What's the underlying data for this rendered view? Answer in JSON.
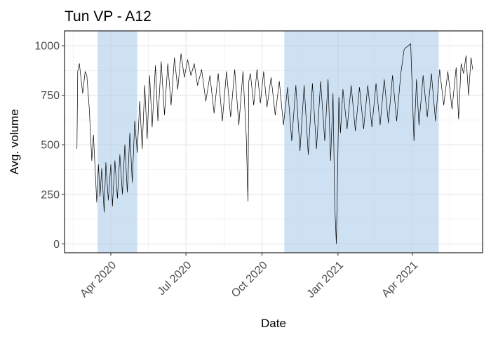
{
  "chart_data": {
    "type": "line",
    "title": "Tun VP - A12",
    "xlabel": "Date",
    "ylabel": "Avg. volume",
    "x_domain": [
      "2020-02-05",
      "2021-06-25"
    ],
    "ylim": [
      -45,
      1075
    ],
    "y_ticks": [
      0,
      250,
      500,
      750,
      1000
    ],
    "x_ticks": [
      {
        "date": "2020-04-01",
        "label": "Apr 2020"
      },
      {
        "date": "2020-07-01",
        "label": "Jul 2020"
      },
      {
        "date": "2020-10-01",
        "label": "Oct 2020"
      },
      {
        "date": "2021-01-01",
        "label": "Jan 2021"
      },
      {
        "date": "2021-04-01",
        "label": "Apr 2021"
      }
    ],
    "grid": true,
    "shaded_periods": [
      {
        "start": "2020-03-16",
        "end": "2020-05-03"
      },
      {
        "start": "2020-10-28",
        "end": "2021-05-03"
      }
    ],
    "series": [
      {
        "color": "#000000",
        "x": [
          "2020-02-20",
          "2020-02-21",
          "2020-02-23",
          "2020-02-25",
          "2020-02-27",
          "2020-03-01",
          "2020-03-03",
          "2020-03-06",
          "2020-03-09",
          "2020-03-11",
          "2020-03-13",
          "2020-03-15",
          "2020-03-17",
          "2020-03-19",
          "2020-03-21",
          "2020-03-24",
          "2020-03-26",
          "2020-03-29",
          "2020-04-01",
          "2020-04-03",
          "2020-04-06",
          "2020-04-09",
          "2020-04-12",
          "2020-04-15",
          "2020-04-18",
          "2020-04-21",
          "2020-04-24",
          "2020-04-27",
          "2020-04-30",
          "2020-05-03",
          "2020-05-06",
          "2020-05-09",
          "2020-05-12",
          "2020-05-15",
          "2020-05-18",
          "2020-05-21",
          "2020-05-25",
          "2020-05-28",
          "2020-06-01",
          "2020-06-05",
          "2020-06-09",
          "2020-06-13",
          "2020-06-17",
          "2020-06-21",
          "2020-06-25",
          "2020-06-29",
          "2020-07-03",
          "2020-07-07",
          "2020-07-11",
          "2020-07-15",
          "2020-07-20",
          "2020-07-25",
          "2020-07-30",
          "2020-08-04",
          "2020-08-09",
          "2020-08-14",
          "2020-08-19",
          "2020-08-24",
          "2020-08-29",
          "2020-09-03",
          "2020-09-08",
          "2020-09-12",
          "2020-09-14",
          "2020-09-15",
          "2020-09-17",
          "2020-09-21",
          "2020-09-25",
          "2020-09-29",
          "2020-10-03",
          "2020-10-07",
          "2020-10-12",
          "2020-10-17",
          "2020-10-22",
          "2020-10-27",
          "2020-11-01",
          "2020-11-06",
          "2020-11-11",
          "2020-11-16",
          "2020-11-21",
          "2020-11-26",
          "2020-12-01",
          "2020-12-06",
          "2020-12-11",
          "2020-12-16",
          "2020-12-20",
          "2020-12-23",
          "2020-12-26",
          "2020-12-28",
          "2020-12-30",
          "2021-01-02",
          "2021-01-04",
          "2021-01-07",
          "2021-01-12",
          "2021-01-17",
          "2021-01-22",
          "2021-01-27",
          "2021-02-01",
          "2021-02-06",
          "2021-02-11",
          "2021-02-16",
          "2021-02-21",
          "2021-02-26",
          "2021-03-03",
          "2021-03-08",
          "2021-03-13",
          "2021-03-18",
          "2021-03-22",
          "2021-03-24",
          "2021-03-27",
          "2021-03-30",
          "2021-04-01",
          "2021-04-03",
          "2021-04-06",
          "2021-04-09",
          "2021-04-14",
          "2021-04-19",
          "2021-04-24",
          "2021-04-29",
          "2021-05-04",
          "2021-05-09",
          "2021-05-14",
          "2021-05-19",
          "2021-05-24",
          "2021-05-27",
          "2021-05-30",
          "2021-06-02",
          "2021-06-05",
          "2021-06-08",
          "2021-06-11",
          "2021-06-13"
        ],
        "y": [
          480,
          870,
          910,
          830,
          760,
          870,
          850,
          680,
          420,
          550,
          380,
          210,
          400,
          240,
          380,
          160,
          410,
          220,
          400,
          190,
          420,
          230,
          450,
          250,
          500,
          260,
          560,
          310,
          620,
          460,
          720,
          480,
          800,
          530,
          850,
          590,
          900,
          620,
          920,
          650,
          910,
          700,
          940,
          780,
          960,
          840,
          930,
          850,
          910,
          800,
          880,
          720,
          850,
          660,
          860,
          620,
          870,
          640,
          880,
          600,
          870,
          540,
          215,
          820,
          860,
          700,
          880,
          710,
          870,
          690,
          840,
          650,
          820,
          600,
          790,
          520,
          800,
          470,
          800,
          450,
          810,
          480,
          820,
          520,
          830,
          420,
          760,
          200,
          0,
          740,
          560,
          780,
          580,
          800,
          570,
          790,
          580,
          800,
          590,
          810,
          600,
          830,
          610,
          850,
          620,
          860,
          980,
          990,
          1000,
          1010,
          760,
          520,
          830,
          600,
          850,
          640,
          860,
          620,
          880,
          700,
          870,
          680,
          890,
          630,
          910,
          860,
          950,
          750,
          940,
          880
        ]
      }
    ]
  }
}
